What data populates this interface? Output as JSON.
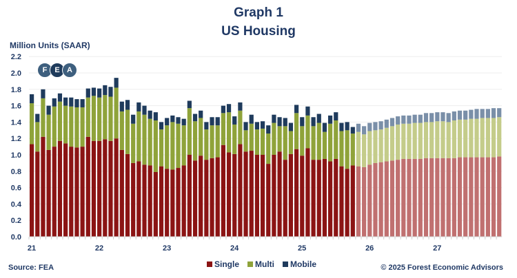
{
  "header": {
    "title": "Graph 1",
    "subtitle": "US Housing"
  },
  "footer": {
    "source": "Source: FEA",
    "copyright": "© 2025 Forest Economic Advisors"
  },
  "logo": {
    "letters": [
      "F",
      "E",
      "A"
    ]
  },
  "chart_data": {
    "type": "bar",
    "stacked": true,
    "title": "Graph 1 US Housing",
    "ylabel": "Million Units (SAAR)",
    "xlabel": "",
    "ylim": [
      0,
      2.2
    ],
    "yticks": [
      "0.0",
      "0.2",
      "0.4",
      "0.6",
      "0.8",
      "1.0",
      "1.2",
      "1.4",
      "1.6",
      "1.8",
      "2.0",
      "2.2"
    ],
    "xtick_labels": [
      "21",
      "22",
      "23",
      "24",
      "25",
      "26",
      "27"
    ],
    "grid": "horizontal",
    "legend_placement": "bottom",
    "start_month": "2021-01",
    "forecast_start": "2025-11",
    "colors": {
      "single": "#8B1414",
      "multi": "#8FA33A",
      "mobile": "#1F3B5C",
      "single_forecast": "#C07070",
      "multi_forecast": "#C4CC8A",
      "mobile_forecast": "#7A8FA8"
    },
    "series": [
      {
        "name": "Single",
        "values": [
          1.13,
          1.04,
          1.22,
          1.06,
          1.1,
          1.17,
          1.14,
          1.1,
          1.09,
          1.1,
          1.22,
          1.17,
          1.17,
          1.19,
          1.17,
          1.2,
          1.06,
          1.01,
          0.9,
          0.92,
          0.88,
          0.87,
          0.79,
          0.86,
          0.83,
          0.82,
          0.84,
          0.87,
          1.0,
          0.93,
          0.99,
          0.94,
          0.96,
          0.97,
          1.12,
          1.03,
          1.01,
          1.13,
          1.04,
          1.05,
          1.0,
          1.0,
          0.89,
          1.0,
          1.04,
          0.94,
          1.01,
          1.07,
          0.99,
          1.08,
          0.94,
          0.94,
          0.95,
          0.92,
          0.95,
          0.86,
          0.83,
          0.87,
          0.86,
          0.85,
          0.88,
          0.9,
          0.91,
          0.92,
          0.93,
          0.94,
          0.95,
          0.95,
          0.95,
          0.95,
          0.96,
          0.96,
          0.96,
          0.96,
          0.96,
          0.96,
          0.97,
          0.97,
          0.97,
          0.97,
          0.97,
          0.97,
          0.97,
          0.98
        ]
      },
      {
        "name": "Multi",
        "values": [
          0.5,
          0.36,
          0.47,
          0.43,
          0.49,
          0.48,
          0.46,
          0.49,
          0.49,
          0.48,
          0.48,
          0.55,
          0.53,
          0.54,
          0.54,
          0.62,
          0.47,
          0.54,
          0.48,
          0.61,
          0.61,
          0.57,
          0.63,
          0.45,
          0.53,
          0.58,
          0.54,
          0.49,
          0.57,
          0.48,
          0.46,
          0.37,
          0.4,
          0.39,
          0.39,
          0.49,
          0.36,
          0.41,
          0.26,
          0.33,
          0.31,
          0.32,
          0.37,
          0.39,
          0.31,
          0.41,
          0.28,
          0.44,
          0.36,
          0.4,
          0.41,
          0.45,
          0.33,
          0.46,
          0.47,
          0.43,
          0.47,
          0.39,
          0.42,
          0.4,
          0.41,
          0.4,
          0.4,
          0.41,
          0.42,
          0.43,
          0.43,
          0.43,
          0.44,
          0.44,
          0.44,
          0.44,
          0.45,
          0.45,
          0.44,
          0.46,
          0.46,
          0.46,
          0.47,
          0.47,
          0.48,
          0.48,
          0.48,
          0.48
        ]
      },
      {
        "name": "Mobile",
        "values": [
          0.11,
          0.1,
          0.11,
          0.11,
          0.1,
          0.1,
          0.1,
          0.11,
          0.1,
          0.1,
          0.11,
          0.1,
          0.11,
          0.12,
          0.12,
          0.12,
          0.12,
          0.12,
          0.11,
          0.11,
          0.11,
          0.1,
          0.1,
          0.09,
          0.09,
          0.08,
          0.08,
          0.08,
          0.09,
          0.09,
          0.09,
          0.09,
          0.1,
          0.1,
          0.09,
          0.1,
          0.1,
          0.1,
          0.1,
          0.11,
          0.09,
          0.09,
          0.1,
          0.1,
          0.11,
          0.1,
          0.1,
          0.1,
          0.11,
          0.11,
          0.11,
          0.11,
          0.11,
          0.1,
          0.1,
          0.1,
          0.1,
          0.08,
          0.1,
          0.1,
          0.1,
          0.1,
          0.1,
          0.1,
          0.1,
          0.1,
          0.1,
          0.1,
          0.1,
          0.1,
          0.11,
          0.11,
          0.11,
          0.11,
          0.11,
          0.11,
          0.11,
          0.11,
          0.11,
          0.12,
          0.11,
          0.11,
          0.12,
          0.11
        ]
      }
    ]
  }
}
